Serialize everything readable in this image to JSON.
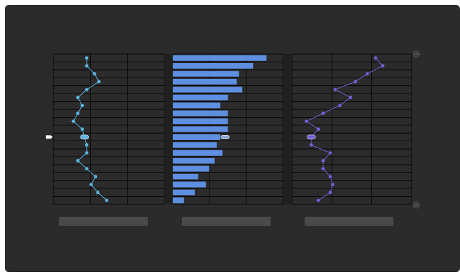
{
  "colors": {
    "window_bg": "#2b2b2b",
    "gridline": "#000000",
    "panel_divider": "#202020",
    "left_series": "#5bb5e0",
    "bar_fill": "#5e8fe0",
    "right_series": "#6e62d6",
    "pointer": "#ffffff",
    "label_placeholder": "#4a4a4a"
  },
  "icons": {
    "row_pointer": "arrow-right-icon",
    "top_handle": "circle-handle-icon",
    "bottom_handle": "circle-handle-icon",
    "left_marker": "selection-marker-icon",
    "middle_marker": "selection-marker-icon",
    "right_marker": "selection-marker-icon"
  },
  "chart_data": [
    {
      "type": "line",
      "orientation": "vertical",
      "grid": true,
      "xlim": [
        0,
        100
      ],
      "rows": 19,
      "selected_row": 10,
      "values": [
        30,
        30,
        37,
        41,
        30,
        22,
        26,
        22,
        18,
        26,
        28,
        30,
        30,
        22,
        30,
        38,
        34,
        40,
        48
      ]
    },
    {
      "type": "bar",
      "orientation": "horizontal",
      "grid": true,
      "xlim": [
        0,
        100
      ],
      "rows": 19,
      "selected_row": 10,
      "values": [
        85,
        73,
        60,
        58,
        63,
        50,
        43,
        50,
        50,
        50,
        43,
        40,
        45,
        38,
        33,
        23,
        30,
        20,
        10
      ]
    },
    {
      "type": "line",
      "orientation": "vertical",
      "grid": true,
      "xlim": [
        0,
        100
      ],
      "rows": 19,
      "selected_row": 10,
      "values": [
        70,
        76,
        63,
        53,
        36,
        49,
        40,
        26,
        12,
        22,
        16,
        16,
        32,
        26,
        26,
        32,
        34,
        32,
        22
      ]
    }
  ]
}
